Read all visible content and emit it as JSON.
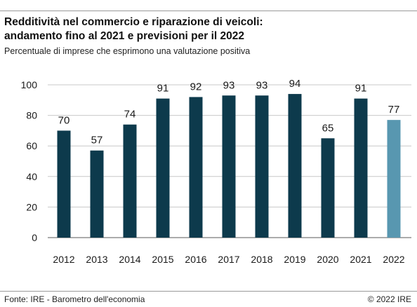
{
  "header": {
    "title_line1": "Redditività nel commercio e riparazione di veicoli:",
    "title_line2": "andamento fino al 2021 e previsioni per il 2022",
    "subtitle": "Percentuale di imprese che esprimono una valutazione positiva"
  },
  "footer": {
    "source": "Fonte: IRE - Barometro dell'economia",
    "copyright": "© 2022 IRE"
  },
  "colors": {
    "actual": "#0d3a4c",
    "forecast": "#5897b0",
    "gridline": "#c8c8c8",
    "baseline": "#7a7a7a"
  },
  "chart_data": {
    "type": "bar",
    "title": "Redditività nel commercio e riparazione di veicoli: andamento fino al 2021 e previsioni per il 2022",
    "subtitle": "Percentuale di imprese che esprimono una valutazione positiva",
    "categories": [
      "2012",
      "2013",
      "2014",
      "2015",
      "2016",
      "2017",
      "2018",
      "2019",
      "2020",
      "2021",
      "2022"
    ],
    "values": [
      70,
      57,
      74,
      91,
      92,
      93,
      93,
      94,
      65,
      91,
      77
    ],
    "data_labels": [
      "70",
      "57",
      "74",
      "91",
      "92",
      "93",
      "93",
      "94",
      "65",
      "91",
      "77"
    ],
    "bar_kind": [
      "actual",
      "actual",
      "actual",
      "actual",
      "actual",
      "actual",
      "actual",
      "actual",
      "actual",
      "actual",
      "forecast"
    ],
    "ylim": [
      0,
      100
    ],
    "yticks": [
      0,
      20,
      40,
      60,
      80,
      100
    ],
    "xlabel": "",
    "ylabel": "",
    "grid": true,
    "legend": "none"
  }
}
